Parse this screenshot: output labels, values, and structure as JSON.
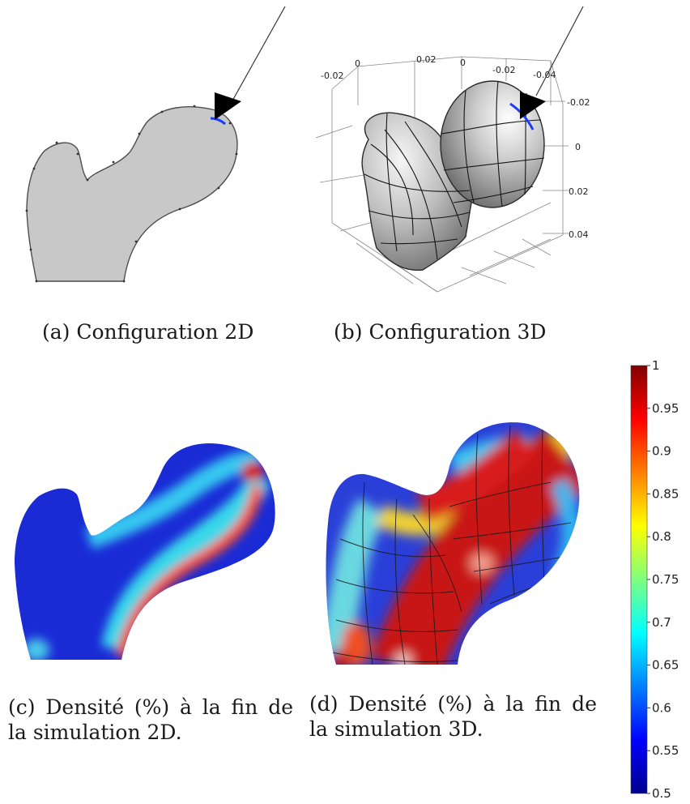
{
  "figure": {
    "panels": {
      "a": {
        "caption": "(a) Configuration 2D"
      },
      "b": {
        "caption": "(b) Configuration 3D",
        "axis_labels_top": [
          "-0.02",
          "0",
          "0.02",
          "0",
          "-0.02",
          "-0.04"
        ],
        "axis_labels_right": [
          "-0.02",
          "0",
          "0.02",
          "0.04"
        ]
      },
      "c": {
        "caption": "(c) Densité (%) à la fin de la simulation 2D."
      },
      "d": {
        "caption": "(d) Densité (%) à la fin de la simulation 3D."
      }
    },
    "colorbar": {
      "ticks": [
        "1",
        "0.95",
        "0.9",
        "0.85",
        "0.8",
        "0.75",
        "0.7",
        "0.65",
        "0.6",
        "0.55",
        "0.5"
      ],
      "min": 0.5,
      "max": 1,
      "colormap": "jet"
    }
  }
}
